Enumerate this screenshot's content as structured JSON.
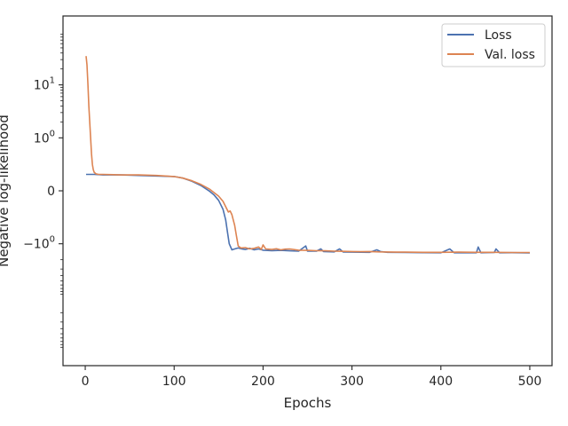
{
  "chart_data": {
    "type": "line",
    "title": "",
    "xlabel": "Epochs",
    "ylabel": "Negative log-likelihood",
    "xscale": "linear",
    "yscale": "symlog",
    "symlog_linthresh": 1,
    "xlim": [
      -25,
      525
    ],
    "ylim": [
      -200,
      200
    ],
    "xticks": [
      {
        "value": 0,
        "label": "0"
      },
      {
        "value": 100,
        "label": "100"
      },
      {
        "value": 200,
        "label": "200"
      },
      {
        "value": 300,
        "label": "300"
      },
      {
        "value": 400,
        "label": "400"
      },
      {
        "value": 500,
        "label": "500"
      }
    ],
    "yticks": [
      {
        "value": 10,
        "label": "10",
        "exp": "1"
      },
      {
        "value": 1,
        "label": "10",
        "exp": "0"
      },
      {
        "value": 0,
        "label": "0",
        "exp": ""
      },
      {
        "value": -1,
        "label": "−10",
        "exp": "0"
      }
    ],
    "grid": false,
    "legend_position": "top-right",
    "series": [
      {
        "name": "Loss",
        "color": "#4c72b0",
        "points": [
          [
            1,
            0.31
          ],
          [
            10,
            0.31
          ],
          [
            20,
            0.3
          ],
          [
            40,
            0.3
          ],
          [
            60,
            0.29
          ],
          [
            80,
            0.28
          ],
          [
            100,
            0.27
          ],
          [
            110,
            0.24
          ],
          [
            120,
            0.18
          ],
          [
            130,
            0.1
          ],
          [
            140,
            -0.01
          ],
          [
            145,
            -0.08
          ],
          [
            150,
            -0.18
          ],
          [
            155,
            -0.35
          ],
          [
            158,
            -0.55
          ],
          [
            160,
            -0.78
          ],
          [
            162,
            -1.0
          ],
          [
            165,
            -1.3
          ],
          [
            168,
            -1.25
          ],
          [
            172,
            -1.2
          ],
          [
            176,
            -1.25
          ],
          [
            180,
            -1.28
          ],
          [
            185,
            -1.22
          ],
          [
            190,
            -1.3
          ],
          [
            195,
            -1.25
          ],
          [
            200,
            -1.32
          ],
          [
            210,
            -1.35
          ],
          [
            220,
            -1.33
          ],
          [
            230,
            -1.36
          ],
          [
            240,
            -1.38
          ],
          [
            248,
            -1.1
          ],
          [
            250,
            -1.38
          ],
          [
            260,
            -1.38
          ],
          [
            265,
            -1.25
          ],
          [
            268,
            -1.4
          ],
          [
            280,
            -1.42
          ],
          [
            286,
            -1.25
          ],
          [
            290,
            -1.43
          ],
          [
            300,
            -1.44
          ],
          [
            320,
            -1.45
          ],
          [
            328,
            -1.3
          ],
          [
            332,
            -1.4
          ],
          [
            340,
            -1.45
          ],
          [
            360,
            -1.46
          ],
          [
            380,
            -1.47
          ],
          [
            400,
            -1.48
          ],
          [
            410,
            -1.25
          ],
          [
            415,
            -1.48
          ],
          [
            420,
            -1.47
          ],
          [
            440,
            -1.48
          ],
          [
            442,
            -1.15
          ],
          [
            445,
            -1.48
          ],
          [
            460,
            -1.46
          ],
          [
            462,
            -1.25
          ],
          [
            466,
            -1.48
          ],
          [
            480,
            -1.47
          ],
          [
            490,
            -1.48
          ],
          [
            500,
            -1.49
          ]
        ]
      },
      {
        "name": "Val. loss",
        "color": "#dd8452",
        "points": [
          [
            1,
            35
          ],
          [
            2,
            24
          ],
          [
            3,
            10
          ],
          [
            4,
            4
          ],
          [
            5,
            2
          ],
          [
            6,
            1.0
          ],
          [
            7,
            0.7
          ],
          [
            8,
            0.5
          ],
          [
            9,
            0.4
          ],
          [
            10,
            0.35
          ],
          [
            12,
            0.32
          ],
          [
            15,
            0.31
          ],
          [
            20,
            0.31
          ],
          [
            40,
            0.3
          ],
          [
            60,
            0.3
          ],
          [
            80,
            0.29
          ],
          [
            100,
            0.27
          ],
          [
            110,
            0.24
          ],
          [
            120,
            0.19
          ],
          [
            130,
            0.12
          ],
          [
            140,
            0.03
          ],
          [
            150,
            -0.1
          ],
          [
            155,
            -0.2
          ],
          [
            158,
            -0.3
          ],
          [
            161,
            -0.4
          ],
          [
            163,
            -0.38
          ],
          [
            165,
            -0.45
          ],
          [
            168,
            -0.65
          ],
          [
            170,
            -0.85
          ],
          [
            172,
            -1.1
          ],
          [
            175,
            -1.2
          ],
          [
            180,
            -1.18
          ],
          [
            185,
            -1.25
          ],
          [
            190,
            -1.22
          ],
          [
            195,
            -1.15
          ],
          [
            198,
            -1.28
          ],
          [
            200,
            -1.05
          ],
          [
            203,
            -1.25
          ],
          [
            210,
            -1.28
          ],
          [
            215,
            -1.24
          ],
          [
            220,
            -1.3
          ],
          [
            225,
            -1.26
          ],
          [
            230,
            -1.25
          ],
          [
            240,
            -1.32
          ],
          [
            250,
            -1.33
          ],
          [
            260,
            -1.35
          ],
          [
            270,
            -1.36
          ],
          [
            280,
            -1.38
          ],
          [
            290,
            -1.39
          ],
          [
            300,
            -1.4
          ],
          [
            310,
            -1.41
          ],
          [
            320,
            -1.4
          ],
          [
            330,
            -1.42
          ],
          [
            340,
            -1.43
          ],
          [
            350,
            -1.44
          ],
          [
            360,
            -1.44
          ],
          [
            380,
            -1.45
          ],
          [
            400,
            -1.45
          ],
          [
            420,
            -1.44
          ],
          [
            440,
            -1.45
          ],
          [
            460,
            -1.45
          ],
          [
            480,
            -1.46
          ],
          [
            500,
            -1.46
          ]
        ]
      }
    ]
  }
}
